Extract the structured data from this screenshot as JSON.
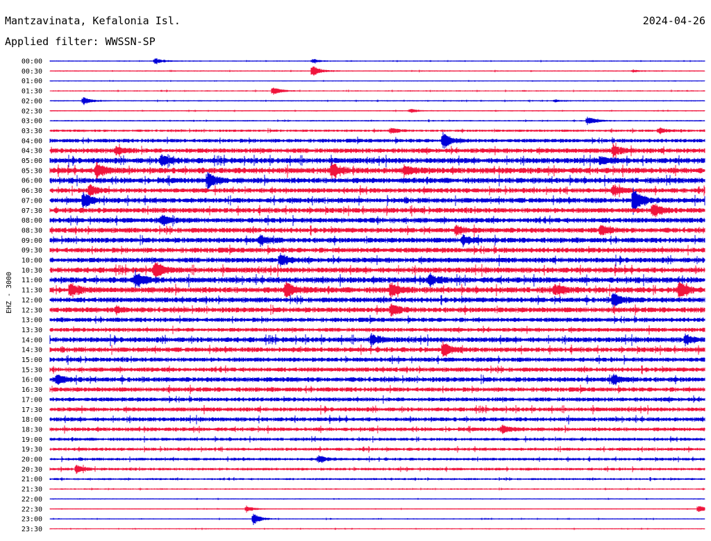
{
  "header": {
    "station": "Mantzavinata, Kefalonia Isl.",
    "filter": "Applied filter: WWSSN-SP",
    "date": "2024-04-26"
  },
  "chart_data": {
    "type": "line",
    "channel_label": "EHZ - 3000",
    "colors": [
      "#0000d8",
      "#f0143c"
    ],
    "row_labels": [
      "00:00",
      "00:30",
      "01:00",
      "01:30",
      "02:00",
      "02:30",
      "03:00",
      "03:30",
      "04:00",
      "04:30",
      "05:00",
      "05:30",
      "06:00",
      "06:30",
      "07:00",
      "07:30",
      "08:00",
      "08:30",
      "09:00",
      "09:30",
      "10:00",
      "10:30",
      "11:00",
      "11:30",
      "12:00",
      "12:30",
      "13:00",
      "13:30",
      "14:00",
      "14:30",
      "15:00",
      "15:30",
      "16:00",
      "16:30",
      "17:00",
      "17:30",
      "18:00",
      "18:30",
      "19:00",
      "19:30",
      "20:00",
      "20:30",
      "21:00",
      "21:30",
      "22:00",
      "22:30",
      "23:00",
      "23:30"
    ],
    "noise_level": [
      0.6,
      0.7,
      0.5,
      0.7,
      0.7,
      0.7,
      0.8,
      1.4,
      2.2,
      2.8,
      3.2,
      3.4,
      3.2,
      2.8,
      3.0,
      3.0,
      3.0,
      3.0,
      3.0,
      3.0,
      3.0,
      3.2,
      3.4,
      3.4,
      3.0,
      3.0,
      2.6,
      2.4,
      3.0,
      2.8,
      2.6,
      2.6,
      2.8,
      2.6,
      2.4,
      2.4,
      2.4,
      2.2,
      1.8,
      1.8,
      1.6,
      1.6,
      1.2,
      0.8,
      0.6,
      0.6,
      0.6,
      0.6
    ],
    "events": [
      {
        "row": 0,
        "t": 0.16,
        "a": 5
      },
      {
        "row": 0,
        "t": 0.4,
        "a": 3
      },
      {
        "row": 1,
        "t": 0.4,
        "a": 9
      },
      {
        "row": 1,
        "t": 0.89,
        "a": 2
      },
      {
        "row": 3,
        "t": 0.34,
        "a": 6
      },
      {
        "row": 4,
        "t": 0.05,
        "a": 6
      },
      {
        "row": 4,
        "t": 0.77,
        "a": 2
      },
      {
        "row": 5,
        "t": 0.55,
        "a": 3
      },
      {
        "row": 6,
        "t": 0.82,
        "a": 7
      },
      {
        "row": 7,
        "t": 0.52,
        "a": 4
      },
      {
        "row": 7,
        "t": 0.93,
        "a": 4
      },
      {
        "row": 8,
        "t": 0.6,
        "a": 11
      },
      {
        "row": 9,
        "t": 0.1,
        "a": 6
      },
      {
        "row": 9,
        "t": 0.86,
        "a": 7
      },
      {
        "row": 10,
        "t": 0.17,
        "a": 8
      },
      {
        "row": 10,
        "t": 0.84,
        "a": 7
      },
      {
        "row": 11,
        "t": 0.07,
        "a": 12
      },
      {
        "row": 11,
        "t": 0.43,
        "a": 11
      },
      {
        "row": 11,
        "t": 0.54,
        "a": 7
      },
      {
        "row": 12,
        "t": 0.24,
        "a": 14
      },
      {
        "row": 13,
        "t": 0.06,
        "a": 8
      },
      {
        "row": 13,
        "t": 0.86,
        "a": 6
      },
      {
        "row": 14,
        "t": 0.05,
        "a": 12
      },
      {
        "row": 14,
        "t": 0.89,
        "a": 20
      },
      {
        "row": 15,
        "t": 0.92,
        "a": 10
      },
      {
        "row": 16,
        "t": 0.17,
        "a": 7
      },
      {
        "row": 17,
        "t": 0.62,
        "a": 6
      },
      {
        "row": 17,
        "t": 0.84,
        "a": 7
      },
      {
        "row": 18,
        "t": 0.32,
        "a": 7
      },
      {
        "row": 18,
        "t": 0.63,
        "a": 7
      },
      {
        "row": 20,
        "t": 0.35,
        "a": 11
      },
      {
        "row": 21,
        "t": 0.16,
        "a": 13
      },
      {
        "row": 22,
        "t": 0.13,
        "a": 12
      },
      {
        "row": 22,
        "t": 0.58,
        "a": 8
      },
      {
        "row": 23,
        "t": 0.03,
        "a": 11
      },
      {
        "row": 23,
        "t": 0.36,
        "a": 13
      },
      {
        "row": 23,
        "t": 0.52,
        "a": 11
      },
      {
        "row": 23,
        "t": 0.77,
        "a": 8
      },
      {
        "row": 23,
        "t": 0.96,
        "a": 12
      },
      {
        "row": 24,
        "t": 0.86,
        "a": 10
      },
      {
        "row": 25,
        "t": 0.52,
        "a": 9
      },
      {
        "row": 25,
        "t": 0.1,
        "a": 5
      },
      {
        "row": 28,
        "t": 0.49,
        "a": 9
      },
      {
        "row": 28,
        "t": 0.97,
        "a": 7
      },
      {
        "row": 29,
        "t": 0.6,
        "a": 11
      },
      {
        "row": 32,
        "t": 0.01,
        "a": 7
      },
      {
        "row": 32,
        "t": 0.86,
        "a": 7
      },
      {
        "row": 37,
        "t": 0.69,
        "a": 6
      },
      {
        "row": 40,
        "t": 0.41,
        "a": 5
      },
      {
        "row": 41,
        "t": 0.04,
        "a": 6
      },
      {
        "row": 45,
        "t": 0.3,
        "a": 4
      },
      {
        "row": 45,
        "t": 0.99,
        "a": 6
      },
      {
        "row": 46,
        "t": 0.31,
        "a": 8
      }
    ]
  }
}
